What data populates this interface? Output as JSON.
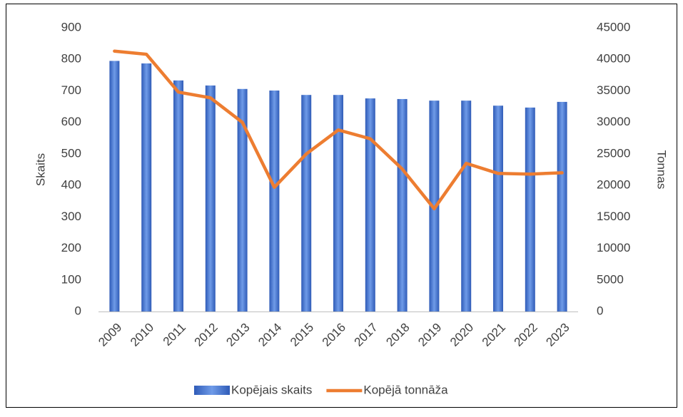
{
  "chart_data": {
    "type": "bar-line",
    "categories": [
      "2009",
      "2010",
      "2011",
      "2012",
      "2013",
      "2014",
      "2015",
      "2016",
      "2017",
      "2018",
      "2019",
      "2020",
      "2021",
      "2022",
      "2023"
    ],
    "series": [
      {
        "name": "Kopējais skaits",
        "type": "bar",
        "color": "#2f5bb7",
        "axis": "y",
        "values": [
          795,
          787,
          733,
          717,
          706,
          701,
          687,
          687,
          676,
          674,
          669,
          669,
          653,
          647,
          665
        ]
      },
      {
        "name": "Kopējā tonnāža",
        "type": "line",
        "color": "#ed7d31",
        "axis": "y2",
        "values": [
          41300,
          40800,
          34800,
          33900,
          30000,
          19700,
          25000,
          28800,
          27400,
          22600,
          16300,
          23500,
          21900,
          21800,
          22000
        ]
      }
    ],
    "ylabel": "Skaits",
    "y2label": "Tonnas",
    "ylim": [
      0,
      900
    ],
    "yticks": [
      0,
      100,
      200,
      300,
      400,
      500,
      600,
      700,
      800,
      900
    ],
    "y2lim": [
      0,
      45000
    ],
    "y2ticks": [
      0,
      5000,
      10000,
      15000,
      20000,
      25000,
      30000,
      35000,
      40000,
      45000
    ],
    "grid": false,
    "legend": "bottom"
  }
}
